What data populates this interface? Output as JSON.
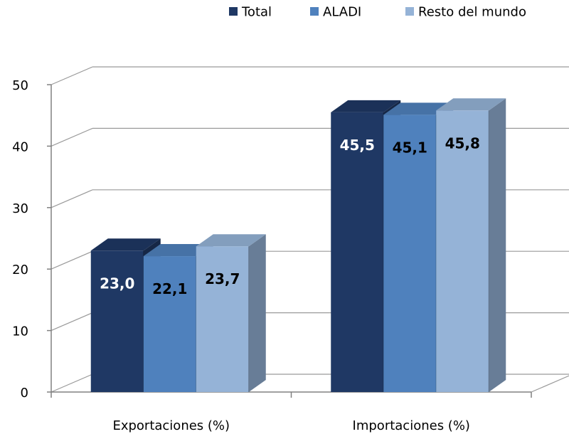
{
  "chart_data": {
    "type": "bar",
    "style": "3d-clustered-column",
    "title": "",
    "xlabel": "",
    "ylabel": "",
    "categories": [
      "Exportaciones (%)",
      "Importaciones (%)"
    ],
    "series": [
      {
        "name": "Total",
        "values": [
          23.0,
          45.5
        ],
        "labels": [
          "23,0",
          "45,5"
        ],
        "color": "#1f3864",
        "label_color": "#ffffff"
      },
      {
        "name": "ALADI",
        "values": [
          22.1,
          45.1
        ],
        "labels": [
          "22,1",
          "45,1"
        ],
        "color": "#4f81bd",
        "label_color": "#000000"
      },
      {
        "name": "Resto del mundo",
        "values": [
          23.7,
          45.8
        ],
        "labels": [
          "23,7",
          "45,8"
        ],
        "color": "#95b3d7",
        "label_color": "#000000"
      }
    ],
    "ylim": [
      0,
      50
    ],
    "yticks": [
      0,
      10,
      20,
      30,
      40,
      50
    ],
    "grid": true,
    "legend_position": "top"
  }
}
